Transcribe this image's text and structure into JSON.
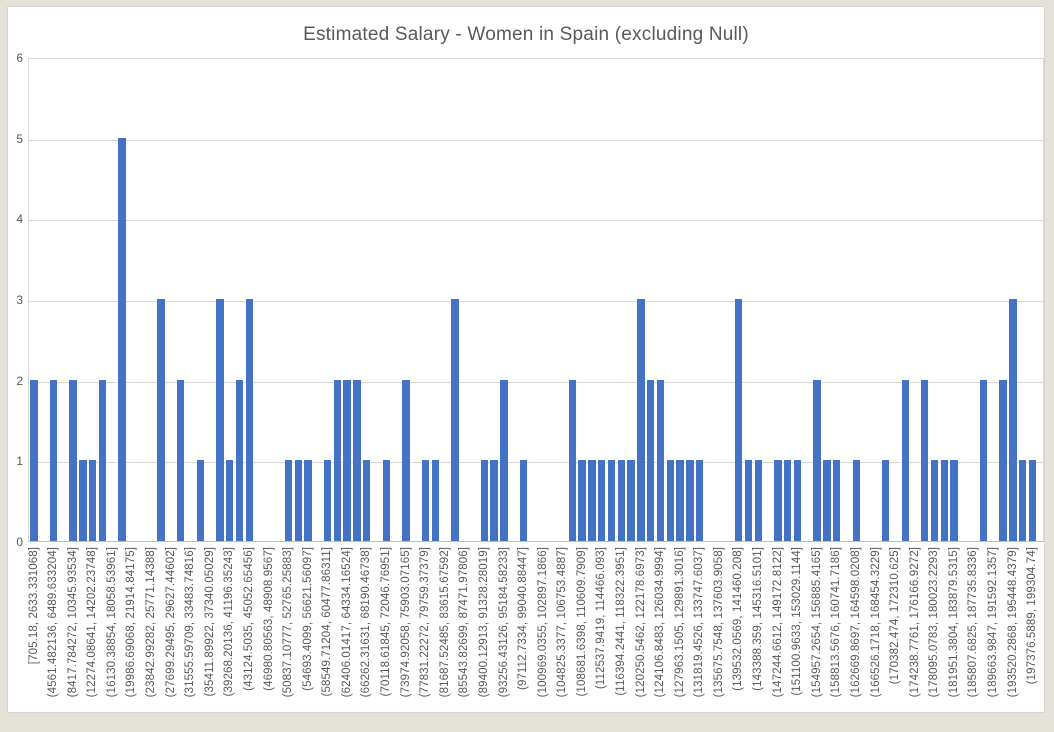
{
  "window": {
    "page_background": "#e5e2d9",
    "chart_background": "#ffffff"
  },
  "chart_data": {
    "type": "bar",
    "title": "Estimated Salary - Women in Spain (excluding Null)",
    "xlabel": "",
    "ylabel": "",
    "ylim": [
      0,
      6
    ],
    "ytick_labels": [
      "0",
      "1",
      "2",
      "3",
      "4",
      "5",
      "6"
    ],
    "grid": true,
    "legend": false,
    "bar_color": "#4472C4",
    "gridline_color": "#d9d9d9",
    "text_color": "#595959",
    "bin_count": 103,
    "values": [
      2,
      0,
      2,
      0,
      2,
      1,
      1,
      2,
      0,
      5,
      0,
      0,
      0,
      3,
      0,
      2,
      0,
      1,
      0,
      3,
      1,
      2,
      3,
      0,
      0,
      0,
      1,
      1,
      1,
      0,
      1,
      2,
      2,
      2,
      1,
      0,
      1,
      0,
      2,
      0,
      1,
      1,
      0,
      3,
      0,
      0,
      1,
      1,
      2,
      0,
      1,
      0,
      0,
      0,
      0,
      2,
      1,
      1,
      1,
      1,
      1,
      1,
      3,
      2,
      2,
      1,
      1,
      1,
      1,
      0,
      0,
      0,
      3,
      1,
      1,
      0,
      1,
      1,
      1,
      0,
      2,
      1,
      1,
      0,
      1,
      0,
      0,
      1,
      0,
      2,
      0,
      2,
      1,
      1,
      1,
      0,
      0,
      2,
      0,
      2,
      3,
      1,
      1
    ],
    "x_tick_label_placement": "one label under every other bin (bins 0, 2, 4, … 102)",
    "x_tick_labels": [
      "[705.18, 2633.331068]",
      "(4561.482136, 6489.633204]",
      "(8417.784272, 10345.93534]",
      "(12274.08641, 14202.23748]",
      "(16130.38854, 18058.53961]",
      "(19986.69068, 21914.84175]",
      "(23842.99282, 25771.14388]",
      "(27699.29495, 29627.44602]",
      "(31555.59709, 33483.74816]",
      "(35411.89922, 37340.05029]",
      "(39268.20136, 41196.35243]",
      "(43124.5035, 45052.65456]",
      "(46980.80563, 48908.9567]",
      "(50837.10777, 52765.25883]",
      "(54693.4099, 56621.56097]",
      "(58549.71204, 60477.86311]",
      "(62406.01417, 64334.16524]",
      "(66262.31631, 68190.46738]",
      "(70118.61845, 72046.76951]",
      "(73974.92058, 75903.07165]",
      "(77831.22272, 79759.37379]",
      "(81687.52485, 83615.67592]",
      "(85543.82699, 87471.97806]",
      "(89400.12913, 91328.28019]",
      "(93256.43126, 95184.58233]",
      "(97112.7334, 99040.88447]",
      "(100969.0355, 102897.1866]",
      "(104825.3377, 106753.4887]",
      "(108681.6398, 110609.7909]",
      "(112537.9419, 114466.093]",
      "(116394.2441, 118322.3951]",
      "(120250.5462, 122178.6973]",
      "(124106.8483, 126034.9994]",
      "(127963.1505, 129891.3016]",
      "(131819.4526, 133747.6037]",
      "(135675.7548, 137603.9058]",
      "(139532.0569, 141460.208]",
      "(143388.359, 145316.5101]",
      "(147244.6612, 149172.8122]",
      "(151100.9633, 153029.1144]",
      "(154957.2654, 156885.4165]",
      "(158813.5676, 160741.7186]",
      "(162669.8697, 164598.0208]",
      "(166526.1718, 168454.3229]",
      "(170382.474, 172310.625]",
      "(174238.7761, 176166.9272]",
      "(178095.0783, 180023.2293]",
      "(181951.3804, 183879.5315]",
      "(185807.6825, 187735.8336]",
      "(189663.9847, 191592.1357]",
      "(193520.2868, 195448.4379]",
      "(197376.5889, 199304.74]"
    ]
  }
}
